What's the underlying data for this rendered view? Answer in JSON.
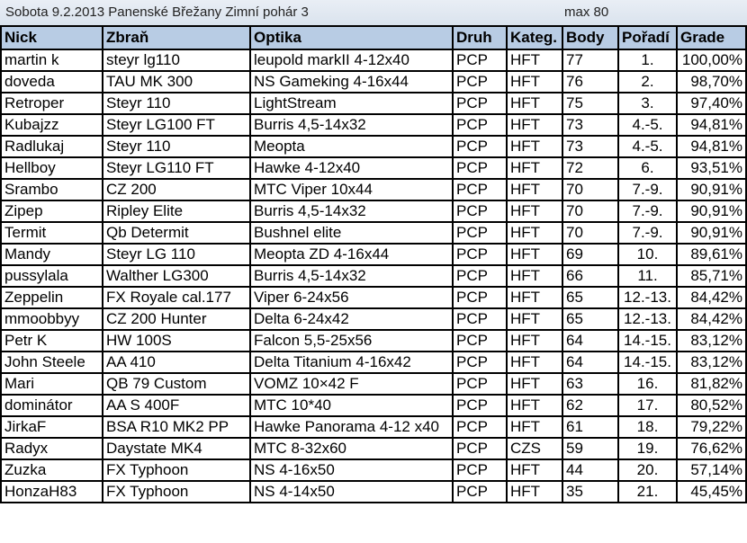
{
  "title": "Sobota 9.2.2013 Panenské Břežany Zimní pohár 3",
  "max": "max 80",
  "columns": [
    "Nick",
    "Zbraň",
    "Optika",
    "Druh",
    "Kateg.",
    "Body",
    "Pořadí",
    "Grade"
  ],
  "rows": [
    [
      "martin k",
      "steyr lg110",
      "leupold markII 4-12x40",
      "PCP",
      "HFT",
      "77",
      "1.",
      "100,00%"
    ],
    [
      "doveda",
      "TAU MK 300",
      "NS Gameking 4-16x44",
      "PCP",
      "HFT",
      "76",
      "2.",
      "98,70%"
    ],
    [
      "Retroper",
      "Steyr 110",
      "LightStream",
      "PCP",
      "HFT",
      "75",
      "3.",
      "97,40%"
    ],
    [
      "Kubajzz",
      "Steyr LG100 FT",
      "Burris 4,5-14x32",
      "PCP",
      "HFT",
      "73",
      "4.-5.",
      "94,81%"
    ],
    [
      "Radlukaj",
      "Steyr 110",
      "Meopta",
      "PCP",
      "HFT",
      "73",
      "4.-5.",
      "94,81%"
    ],
    [
      "Hellboy",
      "Steyr LG110 FT",
      "Hawke 4-12x40",
      "PCP",
      "HFT",
      "72",
      "6.",
      "93,51%"
    ],
    [
      "Srambo",
      "CZ 200",
      "MTC Viper 10x44",
      "PCP",
      "HFT",
      "70",
      "7.-9.",
      "90,91%"
    ],
    [
      "Zipep",
      "Ripley Elite",
      "Burris 4,5-14x32",
      "PCP",
      "HFT",
      "70",
      "7.-9.",
      "90,91%"
    ],
    [
      "Termit",
      "Qb Determit",
      "Bushnel elite",
      "PCP",
      "HFT",
      "70",
      "7.-9.",
      "90,91%"
    ],
    [
      "Mandy",
      "Steyr LG 110",
      "Meopta ZD 4-16x44",
      "PCP",
      "HFT",
      "69",
      "10.",
      "89,61%"
    ],
    [
      "pussylala",
      "Walther LG300",
      "Burris 4,5-14x32",
      "PCP",
      "HFT",
      "66",
      "11.",
      "85,71%"
    ],
    [
      "Zeppelin",
      "FX Royale cal.177",
      "Viper 6-24x56",
      "PCP",
      "HFT",
      "65",
      "12.-13.",
      "84,42%"
    ],
    [
      "mmoobbyy",
      "CZ 200 Hunter",
      "Delta 6-24x42",
      "PCP",
      "HFT",
      "65",
      "12.-13.",
      "84,42%"
    ],
    [
      "Petr K",
      "HW 100S",
      "Falcon 5,5-25x56",
      "PCP",
      "HFT",
      "64",
      "14.-15.",
      "83,12%"
    ],
    [
      "John Steele",
      "AA 410",
      "Delta Titanium 4-16x42",
      "PCP",
      "HFT",
      "64",
      "14.-15.",
      "83,12%"
    ],
    [
      "Mari",
      "QB 79 Custom",
      "VOMZ 10×42 F",
      "PCP",
      "HFT",
      "63",
      "16.",
      "81,82%"
    ],
    [
      "dominátor",
      "AA S 400F",
      "MTC 10*40",
      "PCP",
      "HFT",
      "62",
      "17.",
      "80,52%"
    ],
    [
      "JirkaF",
      "BSA R10 MK2 PP",
      "Hawke Panorama 4-12 x40",
      "PCP",
      "HFT",
      "61",
      "18.",
      "79,22%"
    ],
    [
      "Radyx",
      "Daystate MK4",
      "MTC 8-32x60",
      "PCP",
      "CZS",
      "59",
      "19.",
      "76,62%"
    ],
    [
      "Zuzka",
      "FX Typhoon",
      "NS 4-16x50",
      "PCP",
      "HFT",
      "44",
      "20.",
      "57,14%"
    ],
    [
      "HonzaH83",
      "FX Typhoon",
      "NS 4-14x50",
      "PCP",
      "HFT",
      "35",
      "21.",
      "45,45%"
    ]
  ]
}
